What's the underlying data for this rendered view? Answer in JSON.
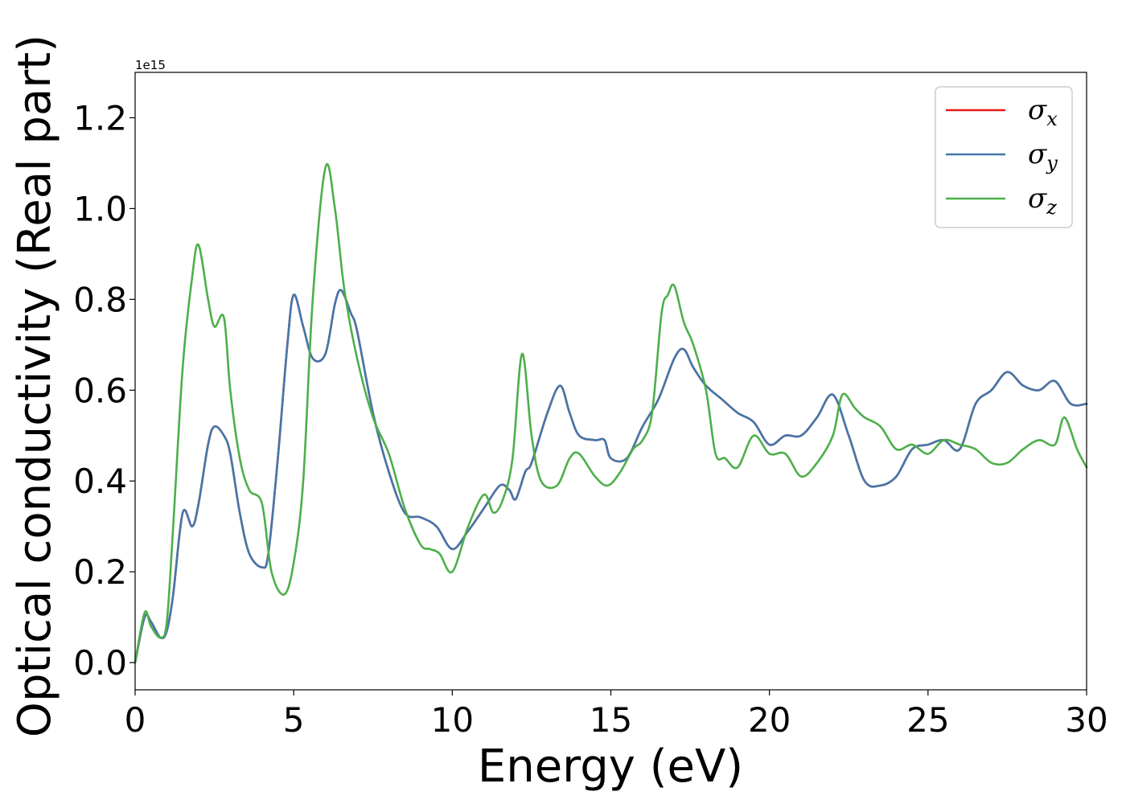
{
  "chart_data": {
    "type": "line",
    "xlabel": "Energy (eV)",
    "ylabel": "Optical conductivity (Real part)",
    "y_offset_label": "1e15",
    "xlim": [
      0,
      30
    ],
    "ylim": [
      -0.06,
      1.3
    ],
    "xticks": [
      0,
      5,
      10,
      15,
      20,
      25,
      30
    ],
    "yticks": [
      0.0,
      0.2,
      0.4,
      0.6,
      0.8,
      1.0,
      1.2
    ],
    "grid": false,
    "legend_position": "top-right",
    "series": [
      {
        "name": "σx",
        "symbol": "σ",
        "subscript": "x",
        "color": "#e41a1c",
        "x": [
          0,
          0.3,
          0.5,
          0.8,
          1.0,
          1.2,
          1.5,
          1.8,
          2.0,
          2.3,
          2.5,
          2.8,
          3.0,
          3.3,
          3.6,
          4.0,
          4.2,
          4.5,
          4.8,
          5.0,
          5.3,
          5.6,
          6.0,
          6.3,
          6.5,
          6.8,
          7.0,
          7.5,
          8.0,
          8.5,
          9.0,
          9.5,
          10.0,
          10.5,
          11.0,
          11.5,
          11.8,
          12.0,
          12.3,
          12.5,
          13.0,
          13.4,
          13.7,
          14.0,
          14.5,
          14.8,
          15.0,
          15.5,
          16.0,
          16.5,
          17.0,
          17.3,
          17.6,
          18.0,
          18.5,
          19.0,
          19.5,
          20.0,
          20.5,
          21.0,
          21.5,
          22.0,
          22.5,
          23.0,
          23.5,
          24.0,
          24.5,
          25.0,
          25.5,
          26.0,
          26.5,
          27.0,
          27.5,
          28.0,
          28.5,
          29.0,
          29.5,
          30.0
        ],
        "values": [
          0,
          0.1,
          0.09,
          0.055,
          0.07,
          0.15,
          0.33,
          0.3,
          0.35,
          0.48,
          0.52,
          0.5,
          0.46,
          0.33,
          0.24,
          0.21,
          0.24,
          0.45,
          0.7,
          0.81,
          0.74,
          0.67,
          0.68,
          0.79,
          0.82,
          0.77,
          0.73,
          0.55,
          0.42,
          0.33,
          0.32,
          0.3,
          0.25,
          0.29,
          0.34,
          0.39,
          0.38,
          0.36,
          0.42,
          0.44,
          0.55,
          0.61,
          0.55,
          0.5,
          0.49,
          0.49,
          0.45,
          0.45,
          0.52,
          0.58,
          0.67,
          0.69,
          0.65,
          0.61,
          0.58,
          0.55,
          0.53,
          0.48,
          0.5,
          0.5,
          0.54,
          0.59,
          0.5,
          0.4,
          0.39,
          0.41,
          0.47,
          0.48,
          0.49,
          0.47,
          0.57,
          0.6,
          0.64,
          0.61,
          0.6,
          0.62,
          0.57,
          0.57
        ]
      },
      {
        "name": "σy",
        "symbol": "σ",
        "subscript": "y",
        "color": "#4477aa",
        "x": [
          0,
          0.3,
          0.5,
          0.8,
          1.0,
          1.2,
          1.5,
          1.8,
          2.0,
          2.3,
          2.5,
          2.8,
          3.0,
          3.3,
          3.6,
          4.0,
          4.2,
          4.5,
          4.8,
          5.0,
          5.3,
          5.6,
          6.0,
          6.3,
          6.5,
          6.8,
          7.0,
          7.5,
          8.0,
          8.5,
          9.0,
          9.5,
          10.0,
          10.5,
          11.0,
          11.5,
          11.8,
          12.0,
          12.3,
          12.5,
          13.0,
          13.4,
          13.7,
          14.0,
          14.5,
          14.8,
          15.0,
          15.5,
          16.0,
          16.5,
          17.0,
          17.3,
          17.6,
          18.0,
          18.5,
          19.0,
          19.5,
          20.0,
          20.5,
          21.0,
          21.5,
          22.0,
          22.5,
          23.0,
          23.5,
          24.0,
          24.5,
          25.0,
          25.5,
          26.0,
          26.5,
          27.0,
          27.5,
          28.0,
          28.5,
          29.0,
          29.5,
          30.0
        ],
        "values": [
          0,
          0.1,
          0.09,
          0.055,
          0.07,
          0.15,
          0.33,
          0.3,
          0.35,
          0.48,
          0.52,
          0.5,
          0.46,
          0.33,
          0.24,
          0.21,
          0.24,
          0.45,
          0.7,
          0.81,
          0.74,
          0.67,
          0.68,
          0.79,
          0.82,
          0.77,
          0.73,
          0.55,
          0.42,
          0.33,
          0.32,
          0.3,
          0.25,
          0.29,
          0.34,
          0.39,
          0.38,
          0.36,
          0.42,
          0.44,
          0.55,
          0.61,
          0.55,
          0.5,
          0.49,
          0.49,
          0.45,
          0.45,
          0.52,
          0.58,
          0.67,
          0.69,
          0.65,
          0.61,
          0.58,
          0.55,
          0.53,
          0.48,
          0.5,
          0.5,
          0.54,
          0.59,
          0.5,
          0.4,
          0.39,
          0.41,
          0.47,
          0.48,
          0.49,
          0.47,
          0.57,
          0.6,
          0.64,
          0.61,
          0.6,
          0.62,
          0.57,
          0.57
        ]
      },
      {
        "name": "σz",
        "symbol": "σ",
        "subscript": "z",
        "color": "#4daf4a",
        "x": [
          0,
          0.3,
          0.5,
          0.8,
          1.0,
          1.2,
          1.5,
          1.8,
          2.0,
          2.3,
          2.5,
          2.8,
          3.0,
          3.3,
          3.6,
          4.0,
          4.3,
          4.7,
          5.0,
          5.3,
          5.6,
          6.0,
          6.3,
          6.6,
          7.0,
          7.5,
          8.0,
          8.5,
          9.0,
          9.3,
          9.6,
          10.0,
          10.5,
          11.0,
          11.3,
          11.6,
          11.9,
          12.2,
          12.5,
          12.8,
          13.3,
          13.7,
          14.0,
          14.5,
          14.9,
          15.3,
          15.7,
          16.0,
          16.3,
          16.6,
          16.8,
          17.0,
          17.3,
          17.6,
          18.0,
          18.3,
          18.6,
          19.0,
          19.5,
          20.0,
          20.5,
          21.0,
          21.5,
          22.0,
          22.3,
          22.7,
          23.0,
          23.5,
          24.0,
          24.5,
          25.0,
          25.5,
          26.0,
          26.5,
          27.0,
          27.5,
          28.0,
          28.5,
          29.0,
          29.3,
          29.7,
          30.0
        ],
        "values": [
          0,
          0.11,
          0.08,
          0.055,
          0.09,
          0.3,
          0.65,
          0.85,
          0.92,
          0.8,
          0.74,
          0.76,
          0.6,
          0.45,
          0.38,
          0.35,
          0.2,
          0.15,
          0.22,
          0.4,
          0.8,
          1.09,
          1.0,
          0.82,
          0.67,
          0.54,
          0.46,
          0.34,
          0.26,
          0.25,
          0.24,
          0.2,
          0.3,
          0.37,
          0.33,
          0.36,
          0.45,
          0.68,
          0.5,
          0.4,
          0.39,
          0.45,
          0.46,
          0.41,
          0.39,
          0.42,
          0.47,
          0.49,
          0.55,
          0.77,
          0.81,
          0.83,
          0.75,
          0.7,
          0.6,
          0.46,
          0.45,
          0.43,
          0.5,
          0.46,
          0.46,
          0.41,
          0.44,
          0.5,
          0.59,
          0.56,
          0.54,
          0.52,
          0.47,
          0.48,
          0.46,
          0.49,
          0.48,
          0.47,
          0.44,
          0.44,
          0.47,
          0.49,
          0.48,
          0.54,
          0.47,
          0.43
        ]
      }
    ]
  }
}
